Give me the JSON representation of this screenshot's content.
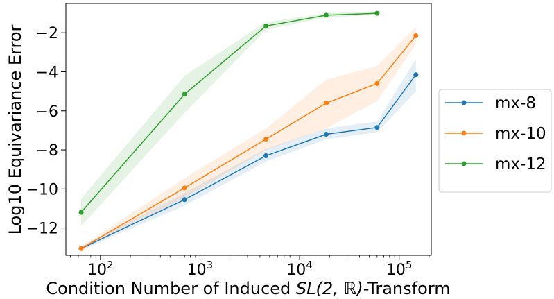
{
  "chart_data": {
    "type": "line",
    "xscale": "log",
    "xlabel_prefix": "Condition Number of Induced ",
    "xlabel_math": "SL(2, ℝ)",
    "xlabel_suffix": "-Transform",
    "ylabel": "Log10 Equivariance Error",
    "xlim": [
      45,
      210000
    ],
    "ylim": [
      -13.4,
      -0.5
    ],
    "x_ticks": [
      {
        "value": 100,
        "base": "10",
        "exp": "2"
      },
      {
        "value": 1000,
        "base": "10",
        "exp": "3"
      },
      {
        "value": 10000,
        "base": "10",
        "exp": "4"
      },
      {
        "value": 100000,
        "base": "10",
        "exp": "5"
      }
    ],
    "y_ticks": [
      {
        "value": -12,
        "label": "−12"
      },
      {
        "value": -10,
        "label": "−10"
      },
      {
        "value": -8,
        "label": "−8"
      },
      {
        "value": -6,
        "label": "−6"
      },
      {
        "value": -4,
        "label": "−4"
      },
      {
        "value": -2,
        "label": "−2"
      }
    ],
    "legend_position": "outside-right",
    "grid": false,
    "series": [
      {
        "name": "mx-8",
        "color": "#1f77b4",
        "x": [
          64,
          700,
          4600,
          18500,
          60000,
          147000
        ],
        "y": [
          -13.05,
          -10.55,
          -8.3,
          -7.2,
          -6.85,
          -4.15
        ],
        "lower": [
          -13.15,
          -10.85,
          -8.6,
          -7.45,
          -7.1,
          -5.0
        ],
        "upper": [
          -12.95,
          -10.2,
          -7.95,
          -6.9,
          -6.55,
          -3.35
        ]
      },
      {
        "name": "mx-10",
        "color": "#ff7f0e",
        "x": [
          64,
          700,
          4600,
          18500,
          60000,
          147000
        ],
        "y": [
          -13.05,
          -9.95,
          -7.45,
          -5.6,
          -4.6,
          -2.15
        ],
        "lower": [
          -13.15,
          -10.45,
          -8.0,
          -6.9,
          -5.5,
          -2.6
        ],
        "upper": [
          -12.95,
          -9.45,
          -6.9,
          -4.4,
          -3.7,
          -1.7
        ]
      },
      {
        "name": "mx-12",
        "color": "#2ca02c",
        "x": [
          64,
          700,
          4600,
          18500,
          60000
        ],
        "y": [
          -11.2,
          -5.15,
          -1.65,
          -1.1,
          -1.0
        ],
        "lower": [
          -11.9,
          -6.1,
          -1.85,
          -1.2,
          -1.1
        ],
        "upper": [
          -10.5,
          -4.2,
          -1.45,
          -1.0,
          -0.9
        ]
      }
    ]
  }
}
